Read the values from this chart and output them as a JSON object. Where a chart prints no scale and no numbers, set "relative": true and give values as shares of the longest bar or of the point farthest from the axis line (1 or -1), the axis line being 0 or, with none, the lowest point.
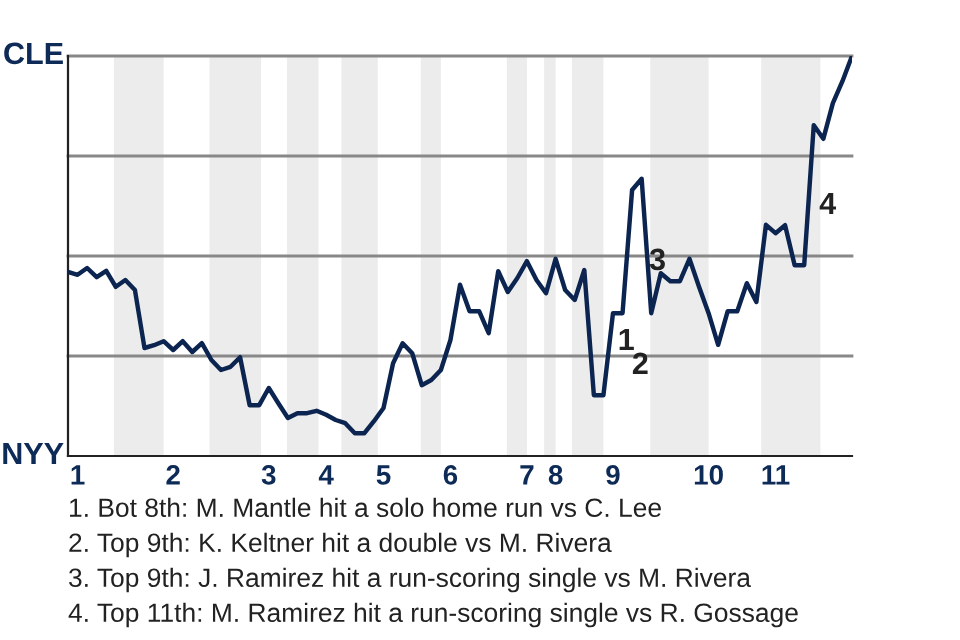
{
  "chart_data": {
    "type": "line",
    "relative": true,
    "categories": [
      null,
      "1",
      null,
      null,
      null,
      null,
      null,
      null,
      null,
      null,
      null,
      "2",
      null,
      null,
      null,
      null,
      null,
      null,
      null,
      null,
      null,
      "3",
      null,
      null,
      null,
      null,
      null,
      "4",
      null,
      null,
      null,
      null,
      null,
      "5",
      null,
      null,
      null,
      null,
      null,
      null,
      "6",
      null,
      null,
      null,
      null,
      null,
      null,
      null,
      "7",
      null,
      null,
      "8",
      null,
      null,
      null,
      null,
      null,
      "9",
      null,
      null,
      null,
      null,
      null,
      null,
      null,
      null,
      null,
      "10",
      null,
      null,
      null,
      null,
      null,
      null,
      "11",
      null,
      null,
      null,
      null,
      null,
      null,
      null,
      null
    ],
    "series": [
      {
        "color": "#0c2550",
        "values": [
          0.46,
          0.453,
          0.47,
          0.447,
          0.463,
          0.423,
          0.44,
          0.415,
          0.27,
          0.277,
          0.287,
          0.265,
          0.287,
          0.26,
          0.282,
          0.24,
          0.215,
          0.223,
          0.247,
          0.127,
          0.127,
          0.17,
          0.132,
          0.095,
          0.107,
          0.107,
          0.113,
          0.103,
          0.09,
          0.082,
          0.057,
          0.057,
          0.087,
          0.12,
          0.232,
          0.282,
          0.257,
          0.177,
          0.19,
          0.215,
          0.29,
          0.428,
          0.362,
          0.362,
          0.307,
          0.462,
          0.41,
          0.445,
          0.487,
          0.44,
          0.407,
          0.493,
          0.415,
          0.39,
          0.465,
          0.152,
          0.152,
          0.357,
          0.357,
          0.665,
          0.693,
          0.357,
          0.457,
          0.437,
          0.437,
          0.493,
          0.423,
          0.357,
          0.278,
          0.362,
          0.362,
          0.432,
          0.385,
          0.578,
          0.557,
          0.577,
          0.477,
          0.477,
          0.827,
          0.793,
          0.882,
          0.937,
          1.0
        ]
      }
    ],
    "ref_lines": [
      {
        "axis": "y",
        "value": 0.25,
        "color": "#888888"
      },
      {
        "axis": "y",
        "value": 0.5,
        "color": "#888888"
      },
      {
        "axis": "y",
        "value": 0.75,
        "color": "#888888"
      },
      {
        "axis": "y",
        "value": 1,
        "color": "#888888"
      }
    ],
    "annotations": [
      "CLE",
      "NYY",
      "1",
      "2",
      "3",
      "4",
      "1. Bot 8th: M. Mantle hit a solo home run vs C. Lee",
      "2. Top 9th: K. Keltner hit a double vs M. Rivera",
      "3. Top 9th: J. Ramirez hit a run-scoring single vs M. Rivera",
      "4. Top 11th: M. Ramirez hit a run-scoring single vs R. Gossage"
    ]
  }
}
